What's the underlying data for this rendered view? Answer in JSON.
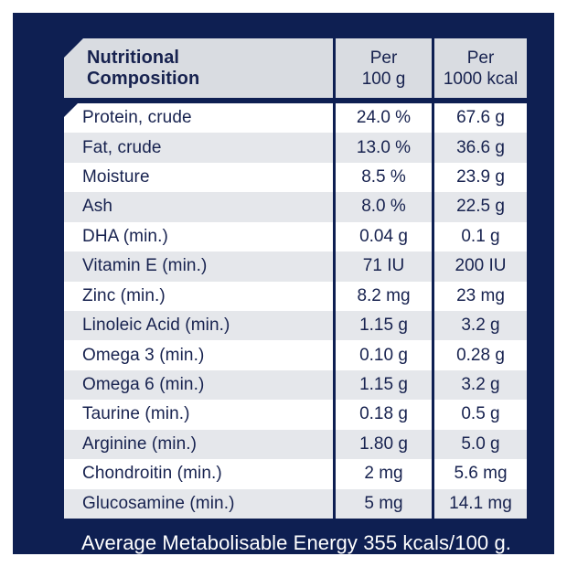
{
  "colors": {
    "panel_navy": "#0e1f52",
    "header_bg": "#d9dce1",
    "row_alt_bg": "#e5e7eb",
    "row_bg": "#ffffff",
    "text_navy": "#17224f",
    "footer_text": "#ffffff"
  },
  "table": {
    "header": {
      "title": [
        "Nutritional",
        "Composition"
      ],
      "col_per_100g": [
        "Per",
        "100 g"
      ],
      "col_per_1000kcal": [
        "Per",
        "1000 kcal"
      ]
    },
    "rows": [
      {
        "label": "Protein, crude",
        "per_100g": "24.0 %",
        "per_1000kcal": "67.6 g"
      },
      {
        "label": "Fat, crude",
        "per_100g": "13.0 %",
        "per_1000kcal": "36.6 g"
      },
      {
        "label": "Moisture",
        "per_100g": "8.5 %",
        "per_1000kcal": "23.9 g"
      },
      {
        "label": "Ash",
        "per_100g": "8.0 %",
        "per_1000kcal": "22.5 g"
      },
      {
        "label": "DHA (min.)",
        "per_100g": "0.04 g",
        "per_1000kcal": "0.1 g"
      },
      {
        "label": "Vitamin E (min.)",
        "per_100g": "71 IU",
        "per_1000kcal": "200 IU"
      },
      {
        "label": "Zinc (min.)",
        "per_100g": "8.2 mg",
        "per_1000kcal": "23 mg"
      },
      {
        "label": "Linoleic Acid (min.)",
        "per_100g": "1.15 g",
        "per_1000kcal": "3.2 g"
      },
      {
        "label": "Omega 3 (min.)",
        "per_100g": "0.10 g",
        "per_1000kcal": "0.28 g"
      },
      {
        "label": "Omega 6 (min.)",
        "per_100g": "1.15 g",
        "per_1000kcal": "3.2 g"
      },
      {
        "label": "Taurine (min.)",
        "per_100g": "0.18 g",
        "per_1000kcal": "0.5 g"
      },
      {
        "label": "Arginine (min.)",
        "per_100g": "1.80 g",
        "per_1000kcal": "5.0 g"
      },
      {
        "label": "Chondroitin (min.)",
        "per_100g": "2 mg",
        "per_1000kcal": "5.6 mg"
      },
      {
        "label": "Glucosamine (min.)",
        "per_100g": "5 mg",
        "per_1000kcal": "14.1 mg"
      }
    ]
  },
  "footer": {
    "text": "Average Metabolisable Energy 355 kcals/100 g."
  }
}
